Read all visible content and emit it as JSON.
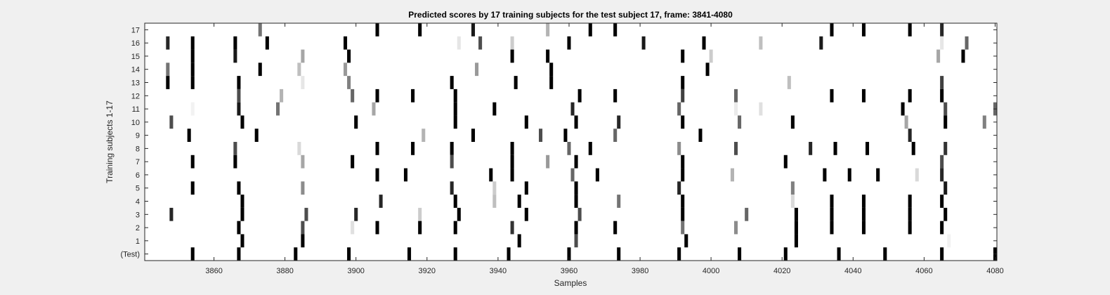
{
  "chart_data": {
    "type": "heatmap",
    "title": "Predicted scores by 17 training subjects for the test subject 17, frame: 3841-4080",
    "xlabel": "Samples",
    "ylabel": "Training subjects 1-17",
    "xlim": [
      3841,
      4080
    ],
    "xticks": [
      3860,
      3880,
      3900,
      3920,
      3940,
      3960,
      3980,
      4000,
      4020,
      4040,
      4060,
      4080
    ],
    "rows": [
      "17",
      "16",
      "15",
      "14",
      "13",
      "12",
      "11",
      "10",
      "9",
      "8",
      "7",
      "6",
      "5",
      "4",
      "3",
      "2",
      "1",
      "(Test)"
    ],
    "colormap": "gray, 0 = white, 1 = black",
    "background_color": "#f0f0f0",
    "marks": [
      {
        "row": "17",
        "x": [
          3873,
          3906,
          3918,
          3933,
          3954,
          3966,
          3973,
          4034,
          4043,
          4056,
          4065
        ],
        "v": [
          0.55,
          1,
          1,
          0.9,
          0.3,
          1,
          1,
          1,
          1,
          1,
          0.85
        ]
      },
      {
        "row": "16",
        "x": [
          3847,
          3854,
          3866,
          3875,
          3897,
          3929,
          3935,
          3944,
          3960,
          3981,
          3998,
          4014,
          4031,
          4065,
          4072
        ],
        "v": [
          0.85,
          1,
          1,
          1,
          1,
          0.1,
          0.7,
          0.2,
          1,
          0.9,
          1,
          0.25,
          0.9,
          0.1,
          0.6
        ]
      },
      {
        "row": "15",
        "x": [
          3854,
          3866,
          3885,
          3898,
          3944,
          3954,
          3992,
          4000,
          4064,
          4071
        ],
        "v": [
          1,
          0.9,
          0.35,
          1,
          1,
          1,
          1,
          0.2,
          0.35,
          1
        ]
      },
      {
        "row": "14",
        "x": [
          3847,
          3854,
          3873,
          3884,
          3897,
          3934,
          3955,
          3999
        ],
        "v": [
          0.55,
          1,
          1,
          0.25,
          0.4,
          0.4,
          1,
          1
        ]
      },
      {
        "row": "13",
        "x": [
          3847,
          3854,
          3867,
          3885,
          3898,
          3927,
          3945,
          3955,
          3992,
          4022,
          4065
        ],
        "v": [
          1,
          1,
          1,
          0.1,
          0.5,
          1,
          1,
          1,
          1,
          0.25,
          0.75
        ]
      },
      {
        "row": "12",
        "x": [
          3867,
          3879,
          3899,
          3906,
          3916,
          3928,
          3963,
          3973,
          3992,
          4007,
          4034,
          4043,
          4056,
          4065
        ],
        "v": [
          0.7,
          0.3,
          0.6,
          1,
          1,
          1,
          1,
          1,
          0.75,
          0.6,
          1,
          1,
          1,
          1
        ]
      },
      {
        "row": "11",
        "x": [
          3854,
          3867,
          3878,
          3905,
          3928,
          3939,
          3961,
          3991,
          4007,
          4014,
          4054,
          4066,
          4080
        ],
        "v": [
          0.05,
          0.9,
          0.55,
          0.35,
          1,
          1,
          0.85,
          0.6,
          0.08,
          0.12,
          1,
          0.7,
          0.6
        ]
      },
      {
        "row": "10",
        "x": [
          3848,
          3868,
          3900,
          3928,
          3948,
          3962,
          3974,
          3992,
          4008,
          4023,
          4055,
          4066,
          4077
        ],
        "v": [
          0.7,
          1,
          1,
          1,
          1,
          1,
          0.85,
          1,
          0.6,
          1,
          0.35,
          1,
          0.5
        ]
      },
      {
        "row": "9",
        "x": [
          3853,
          3872,
          3919,
          3933,
          3952,
          3959,
          3973,
          3997,
          4056
        ],
        "v": [
          1,
          1,
          0.3,
          1,
          0.7,
          1,
          0.6,
          1,
          0.85
        ]
      },
      {
        "row": "8",
        "x": [
          3866,
          3884,
          3906,
          3916,
          3927,
          3944,
          3960,
          3966,
          3991,
          4007,
          4028,
          4035,
          4044,
          4057,
          4066
        ],
        "v": [
          0.7,
          0.15,
          1,
          1,
          1,
          1,
          0.6,
          1,
          0.45,
          0.7,
          0.85,
          1,
          1,
          1,
          0.8
        ]
      },
      {
        "row": "7",
        "x": [
          3854,
          3866,
          3885,
          3899,
          3927,
          3944,
          3954,
          3962,
          3992,
          4021,
          4065
        ],
        "v": [
          1,
          1,
          0.35,
          1,
          0.7,
          1,
          0.4,
          1,
          1,
          1,
          0.7
        ]
      },
      {
        "row": "6",
        "x": [
          3906,
          3914,
          3938,
          3944,
          3961,
          3968,
          3992,
          4006,
          4032,
          4039,
          4047,
          4058,
          4065
        ],
        "v": [
          1,
          1,
          1,
          1,
          0.6,
          1,
          1,
          0.3,
          1,
          1,
          1,
          0.15,
          0.85
        ]
      },
      {
        "row": "5",
        "x": [
          3854,
          3867,
          3885,
          3927,
          3939,
          3948,
          3962,
          3991,
          4023,
          4066
        ],
        "v": [
          1,
          1,
          0.45,
          0.85,
          0.2,
          1,
          1,
          0.85,
          0.5,
          0.9
        ]
      },
      {
        "row": "4",
        "x": [
          3868,
          3907,
          3928,
          3939,
          3946,
          3962,
          3974,
          3992,
          4023,
          4034,
          4043,
          4056,
          4065
        ],
        "v": [
          1,
          0.85,
          1,
          0.25,
          1,
          1,
          0.55,
          1,
          0.15,
          1,
          1,
          1,
          1
        ]
      },
      {
        "row": "3",
        "x": [
          3848,
          3868,
          3886,
          3900,
          3918,
          3929,
          3948,
          3963,
          3992,
          4010,
          4024,
          4034,
          4043,
          4056,
          4066
        ],
        "v": [
          0.85,
          1,
          0.7,
          0.85,
          0.2,
          1,
          1,
          0.7,
          1,
          0.6,
          1,
          1,
          1,
          1,
          1
        ]
      },
      {
        "row": "2",
        "x": [
          3867,
          3885,
          3899,
          3906,
          3918,
          3928,
          3944,
          3962,
          3973,
          3992,
          4007,
          4024,
          4034,
          4043,
          4056,
          4065
        ],
        "v": [
          1,
          0.7,
          0.12,
          1,
          1,
          1,
          0.8,
          1,
          1,
          0.55,
          0.45,
          1,
          1,
          1,
          1,
          1
        ]
      },
      {
        "row": "1",
        "x": [
          3868,
          3885,
          3946,
          3962,
          3993,
          4024,
          4067
        ],
        "v": [
          1,
          1,
          1,
          0.7,
          1,
          1,
          0.05
        ]
      },
      {
        "row": "(Test)",
        "x": [
          3854,
          3867,
          3883,
          3898,
          3915,
          3928,
          3943,
          3960,
          3974,
          3991,
          4008,
          4021,
          4036,
          4049,
          4065,
          4080
        ],
        "v": [
          1,
          1,
          1,
          1,
          1,
          1,
          1,
          1,
          1,
          1,
          1,
          1,
          1,
          1,
          1,
          1
        ]
      }
    ]
  }
}
